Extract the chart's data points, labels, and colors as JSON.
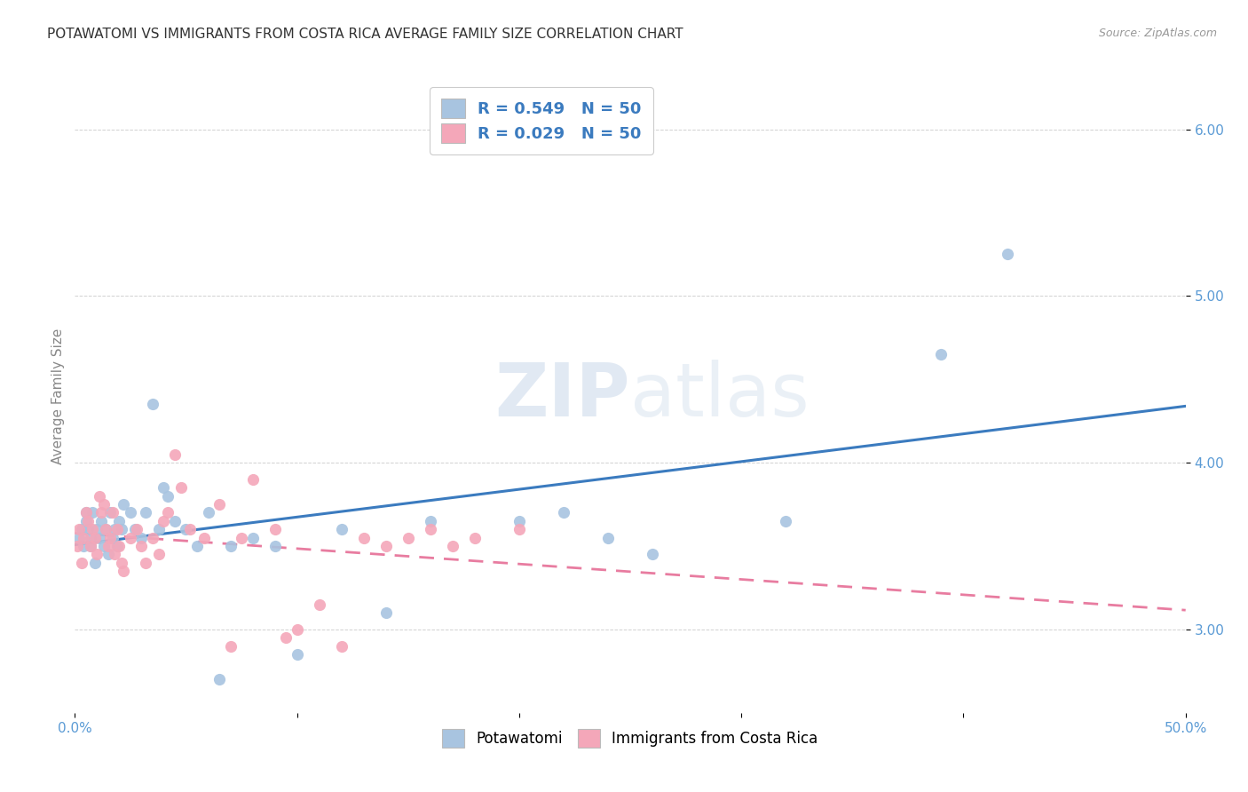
{
  "title": "POTAWATOMI VS IMMIGRANTS FROM COSTA RICA AVERAGE FAMILY SIZE CORRELATION CHART",
  "source": "Source: ZipAtlas.com",
  "ylabel": "Average Family Size",
  "xlim": [
    0.0,
    0.5
  ],
  "ylim": [
    2.5,
    6.3
  ],
  "yticks": [
    3.0,
    4.0,
    5.0,
    6.0
  ],
  "xticks": [
    0.0,
    0.1,
    0.2,
    0.3,
    0.4,
    0.5
  ],
  "xtick_labels": [
    "0.0%",
    "",
    "",
    "",
    "",
    "50.0%"
  ],
  "ytick_labels": [
    "3.00",
    "4.00",
    "5.00",
    "6.00"
  ],
  "legend_labels": [
    "Potawatomi",
    "Immigrants from Costa Rica"
  ],
  "R_blue": 0.549,
  "N_blue": 50,
  "R_pink": 0.029,
  "N_pink": 50,
  "blue_color": "#a8c4e0",
  "pink_color": "#f4a7b9",
  "blue_line_color": "#3b7bbf",
  "pink_line_color": "#e87ca0",
  "axis_color": "#5b9bd5",
  "blue_scatter_x": [
    0.002,
    0.003,
    0.004,
    0.005,
    0.005,
    0.006,
    0.007,
    0.007,
    0.008,
    0.009,
    0.01,
    0.011,
    0.012,
    0.013,
    0.014,
    0.015,
    0.016,
    0.017,
    0.018,
    0.019,
    0.02,
    0.021,
    0.022,
    0.025,
    0.027,
    0.03,
    0.032,
    0.035,
    0.038,
    0.04,
    0.042,
    0.045,
    0.05,
    0.055,
    0.06,
    0.065,
    0.07,
    0.08,
    0.09,
    0.1,
    0.12,
    0.14,
    0.16,
    0.2,
    0.22,
    0.24,
    0.26,
    0.32,
    0.39,
    0.42
  ],
  "blue_scatter_y": [
    3.55,
    3.6,
    3.5,
    3.65,
    3.7,
    3.6,
    3.5,
    3.55,
    3.7,
    3.4,
    3.6,
    3.55,
    3.65,
    3.5,
    3.6,
    3.45,
    3.7,
    3.55,
    3.6,
    3.5,
    3.65,
    3.6,
    3.75,
    3.7,
    3.6,
    3.55,
    3.7,
    4.35,
    3.6,
    3.85,
    3.8,
    3.65,
    3.6,
    3.5,
    3.7,
    2.7,
    3.5,
    3.55,
    3.5,
    2.85,
    3.6,
    3.1,
    3.65,
    3.65,
    3.7,
    3.55,
    3.45,
    3.65,
    4.65,
    5.25
  ],
  "pink_scatter_x": [
    0.001,
    0.002,
    0.003,
    0.004,
    0.005,
    0.006,
    0.007,
    0.008,
    0.009,
    0.01,
    0.011,
    0.012,
    0.013,
    0.014,
    0.015,
    0.016,
    0.017,
    0.018,
    0.019,
    0.02,
    0.021,
    0.022,
    0.025,
    0.028,
    0.03,
    0.032,
    0.035,
    0.038,
    0.04,
    0.042,
    0.045,
    0.048,
    0.052,
    0.058,
    0.065,
    0.07,
    0.075,
    0.08,
    0.09,
    0.095,
    0.1,
    0.11,
    0.12,
    0.13,
    0.14,
    0.15,
    0.16,
    0.17,
    0.18,
    0.2
  ],
  "pink_scatter_y": [
    3.5,
    3.6,
    3.4,
    3.55,
    3.7,
    3.65,
    3.5,
    3.6,
    3.55,
    3.45,
    3.8,
    3.7,
    3.75,
    3.6,
    3.5,
    3.55,
    3.7,
    3.45,
    3.6,
    3.5,
    3.4,
    3.35,
    3.55,
    3.6,
    3.5,
    3.4,
    3.55,
    3.45,
    3.65,
    3.7,
    4.05,
    3.85,
    3.6,
    3.55,
    3.75,
    2.9,
    3.55,
    3.9,
    3.6,
    2.95,
    3.0,
    3.15,
    2.9,
    3.55,
    3.5,
    3.55,
    3.6,
    3.5,
    3.55,
    3.6
  ]
}
